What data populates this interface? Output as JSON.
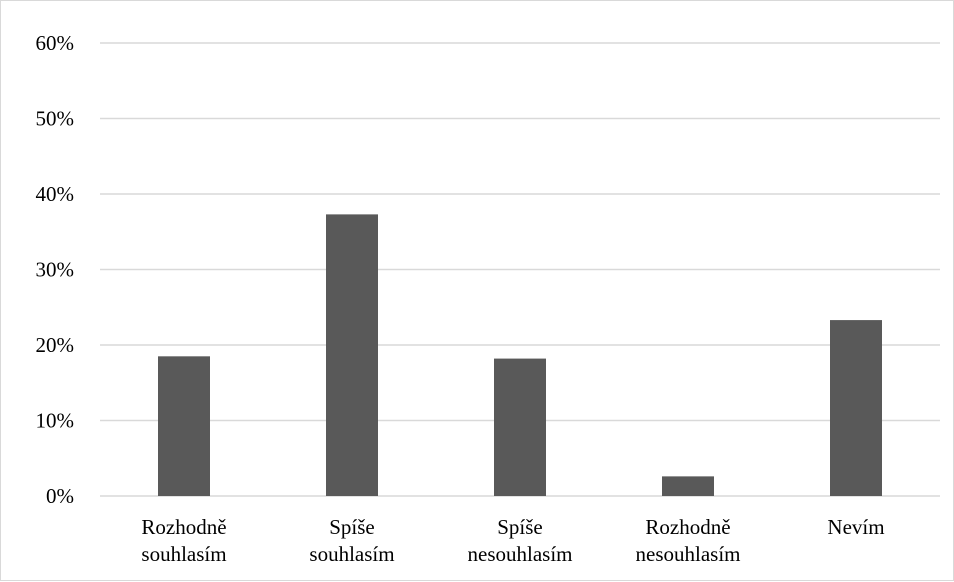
{
  "chart_data": {
    "type": "bar",
    "categories": [
      [
        "Rozhodně",
        "souhlasím"
      ],
      [
        "Spíše",
        "souhlasím"
      ],
      [
        "Spíše",
        "nesouhlasím"
      ],
      [
        "Rozhodně",
        "nesouhlasím"
      ],
      [
        "Nevím"
      ]
    ],
    "values": [
      18.5,
      37.3,
      18.2,
      2.6,
      23.3
    ],
    "ylim": [
      0,
      60
    ],
    "yticks": [
      "0%",
      "10%",
      "20%",
      "30%",
      "40%",
      "50%",
      "60%"
    ],
    "ytick_values": [
      0,
      10,
      20,
      30,
      40,
      50,
      60
    ],
    "grid": true,
    "colors": {
      "bar": "#595959",
      "grid": "#d9d9d9",
      "axis": "#d9d9d9"
    }
  }
}
